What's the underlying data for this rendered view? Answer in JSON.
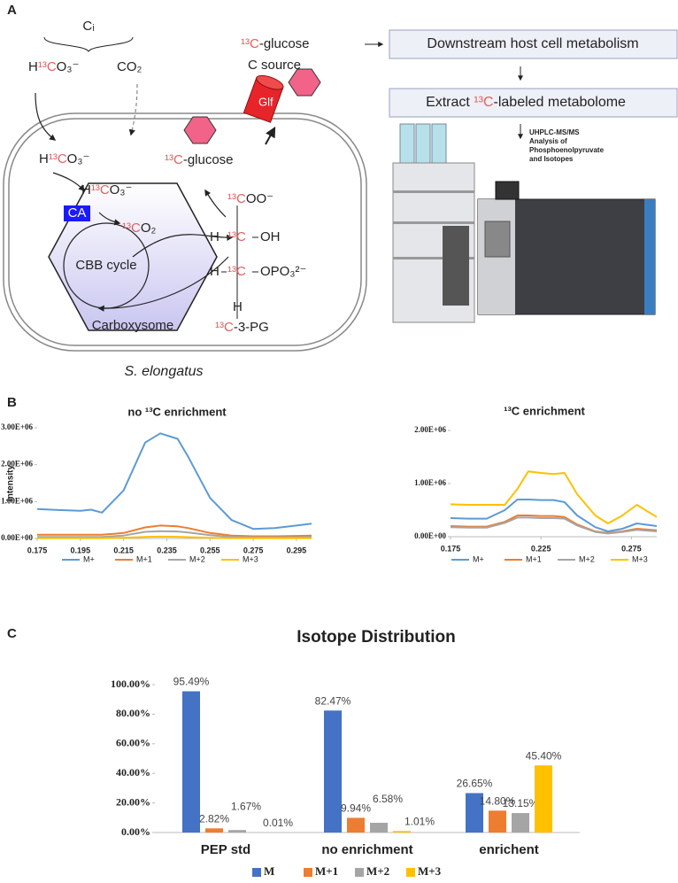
{
  "panel_labels": [
    "A",
    "B",
    "C"
  ],
  "diagram": {
    "ci": "Cᵢ",
    "bicarbonate": "H¹³CO₃⁻",
    "co2": "CO₂",
    "glucose_source": "¹³C-glucose",
    "c_source": "C source",
    "glf": "Glf",
    "bicarbonate_inner": "H¹³CO₃⁻",
    "bicarbonate_carboxysome": "H¹³CO₃⁻",
    "ca": "CA",
    "co2_carboxysome": "¹³CO₂",
    "cbb": "CBB cycle",
    "carboxysome": "Carboxysome",
    "glucose_cell": "¹³C-glucose",
    "pga_top": "¹³COO⁻",
    "h1": "H",
    "c2": "¹³C",
    "oh": "OH",
    "h2": "H",
    "c3": "¹³C",
    "opo3": "OPO₃²⁻",
    "h3": "H",
    "pga": "¹³C-3-PG",
    "organism": "S. elongatus",
    "step1": "Downstream host cell metabolism",
    "step2": "Extract ¹³C-labeled metabolome",
    "instrument": [
      "UHPLC-MS/MS",
      "Analysis of",
      "Phosphoenolpyruvate",
      "and Isotopes"
    ]
  },
  "chart_data": [
    {
      "type": "line",
      "title": "no ¹³C enrichment",
      "ylabel": "intensity",
      "x": [
        0.175,
        0.185,
        0.195,
        0.2,
        0.205,
        0.215,
        0.225,
        0.232,
        0.24,
        0.245,
        0.255,
        0.265,
        0.275,
        0.285,
        0.295,
        0.302
      ],
      "xlim": [
        0.175,
        0.302
      ],
      "xticks": [
        0.175,
        0.195,
        0.215,
        0.235,
        0.255,
        0.275,
        0.295
      ],
      "ylim": [
        0,
        3000000
      ],
      "yticks": [
        {
          "value": 0,
          "label": "0.00E+00"
        },
        {
          "value": 1000000,
          "label": "1.00E+06"
        },
        {
          "value": 2000000,
          "label": "2.00E+06"
        },
        {
          "value": 3000000,
          "label": "3.00E+06"
        }
      ],
      "legend": "bottom",
      "series": [
        {
          "name": "M+",
          "color": "#5b9bd5",
          "values": [
            800000,
            770000,
            750000,
            780000,
            700000,
            1300000,
            2600000,
            2850000,
            2700000,
            2200000,
            1100000,
            500000,
            260000,
            280000,
            350000,
            400000
          ]
        },
        {
          "name": "M+1",
          "color": "#ed7d31",
          "values": [
            100000,
            100000,
            100000,
            100000,
            100000,
            150000,
            300000,
            350000,
            330000,
            280000,
            150000,
            80000,
            60000,
            60000,
            70000,
            80000
          ]
        },
        {
          "name": "M+2",
          "color": "#a5a5a5",
          "values": [
            40000,
            40000,
            40000,
            40000,
            40000,
            80000,
            180000,
            200000,
            190000,
            160000,
            90000,
            40000,
            30000,
            30000,
            30000,
            40000
          ]
        },
        {
          "name": "M+3",
          "color": "#ffc000",
          "values": [
            10000,
            10000,
            10000,
            10000,
            10000,
            20000,
            40000,
            50000,
            45000,
            35000,
            20000,
            10000,
            10000,
            10000,
            10000,
            10000
          ]
        }
      ]
    },
    {
      "type": "line",
      "title": "¹³C enrichment",
      "x": [
        0.175,
        0.185,
        0.195,
        0.205,
        0.212,
        0.218,
        0.225,
        0.232,
        0.238,
        0.245,
        0.255,
        0.262,
        0.27,
        0.278,
        0.289
      ],
      "xlim": [
        0.175,
        0.289
      ],
      "xticks": [
        0.175,
        0.225,
        0.275
      ],
      "ylim": [
        0,
        2000000
      ],
      "yticks": [
        {
          "value": 0,
          "label": "0.00E+00"
        },
        {
          "value": 1000000,
          "label": "1.00E+06"
        },
        {
          "value": 2000000,
          "label": "2.00E+06"
        }
      ],
      "legend": "bottom",
      "series": [
        {
          "name": "M+",
          "color": "#5b9bd5",
          "values": [
            350000,
            340000,
            340000,
            500000,
            700000,
            700000,
            690000,
            690000,
            650000,
            400000,
            180000,
            100000,
            150000,
            250000,
            200000
          ]
        },
        {
          "name": "M+1",
          "color": "#ed7d31",
          "values": [
            200000,
            190000,
            190000,
            280000,
            400000,
            400000,
            390000,
            390000,
            370000,
            230000,
            100000,
            70000,
            100000,
            150000,
            120000
          ]
        },
        {
          "name": "M+2",
          "color": "#a5a5a5",
          "values": [
            180000,
            170000,
            170000,
            260000,
            360000,
            360000,
            350000,
            350000,
            340000,
            210000,
            90000,
            60000,
            90000,
            130000,
            100000
          ]
        },
        {
          "name": "M+3",
          "color": "#ffc000",
          "values": [
            610000,
            600000,
            600000,
            600000,
            900000,
            1230000,
            1200000,
            1180000,
            1200000,
            800000,
            400000,
            250000,
            400000,
            600000,
            370000
          ]
        }
      ]
    },
    {
      "type": "bar",
      "title": "Isotope Distribution",
      "categories": [
        "PEP std",
        "no enrichment",
        "enrichent"
      ],
      "ylim": [
        0,
        100
      ],
      "yticks": [
        {
          "value": 0,
          "label": "0.00%"
        },
        {
          "value": 20,
          "label": "20.00%"
        },
        {
          "value": 40,
          "label": "40.00%"
        },
        {
          "value": 60,
          "label": "60.00%"
        },
        {
          "value": 80,
          "label": "80.00%"
        },
        {
          "value": 100,
          "label": "100.00%"
        }
      ],
      "legend": "bottom",
      "series": [
        {
          "name": "M",
          "color": "#4472c4",
          "values": [
            95.49,
            82.47,
            26.65
          ],
          "value_labels": [
            "95.49%",
            "82.47%",
            "26.65%"
          ]
        },
        {
          "name": "M+1",
          "color": "#ed7d31",
          "values": [
            2.82,
            9.94,
            14.8
          ],
          "value_labels": [
            "2.82%",
            "9.94%",
            "14.80%"
          ]
        },
        {
          "name": "M+2",
          "color": "#a5a5a5",
          "values": [
            1.67,
            6.58,
            13.15
          ],
          "value_labels": [
            "1.67%",
            "6.58%",
            "13.15%"
          ]
        },
        {
          "name": "M+3",
          "color": "#ffc000",
          "values": [
            0.01,
            1.01,
            45.4
          ],
          "value_labels": [
            "0.01%",
            "1.01%",
            "45.40%"
          ]
        }
      ]
    }
  ]
}
